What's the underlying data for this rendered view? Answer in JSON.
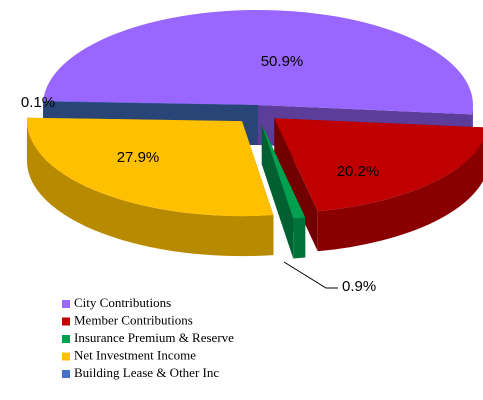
{
  "chart_data": {
    "type": "pie",
    "categories": [
      "City Contributions",
      "Member Contributions",
      "Insurance Premium & Reserve",
      "Net Investment Income",
      "Building Lease & Other Inc"
    ],
    "values": [
      50.9,
      20.2,
      0.9,
      27.9,
      0.1
    ],
    "value_labels": [
      "50.9%",
      "20.2%",
      "0.9%",
      "27.9%",
      "0.1%"
    ],
    "colors": [
      "#9966ff",
      "#c00000",
      "#00a050",
      "#ffc000",
      "#4472c4"
    ],
    "legend": "bottom"
  }
}
